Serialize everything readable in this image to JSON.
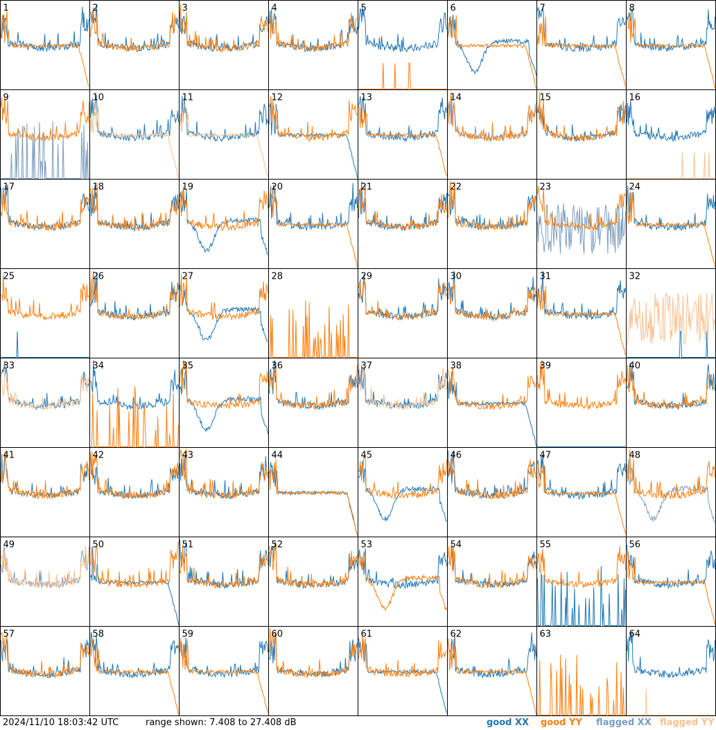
{
  "chart_data": {
    "type": "line",
    "grid": {
      "rows": 8,
      "cols": 8
    },
    "tiles": [
      {
        "label": "1",
        "xx": {
          "style": "hump",
          "flagged": false
        },
        "yy": {
          "style": "falloff",
          "flagged": false
        }
      },
      {
        "label": "2",
        "xx": {
          "style": "hump",
          "flagged": false
        },
        "yy": {
          "style": "hump",
          "flagged": false
        }
      },
      {
        "label": "3",
        "xx": {
          "style": "hump",
          "flagged": false
        },
        "yy": {
          "style": "hump",
          "flagged": false
        }
      },
      {
        "label": "4",
        "xx": {
          "style": "hump",
          "flagged": false
        },
        "yy": {
          "style": "hump",
          "flagged": false
        }
      },
      {
        "label": "5",
        "xx": {
          "style": "hump",
          "flagged": false
        },
        "yy": {
          "style": "dead",
          "flagged": false
        }
      },
      {
        "label": "6",
        "xx": {
          "style": "dip",
          "flagged": false
        },
        "yy": {
          "style": "falloff",
          "flagged": false
        }
      },
      {
        "label": "7",
        "xx": {
          "style": "hump",
          "flagged": false
        },
        "yy": {
          "style": "falloff",
          "flagged": false
        }
      },
      {
        "label": "8",
        "xx": {
          "style": "hump",
          "flagged": false
        },
        "yy": {
          "style": "falloff",
          "flagged": false
        }
      },
      {
        "label": "9",
        "xx": {
          "style": "spikes",
          "flagged": true
        },
        "yy": {
          "style": "hump",
          "flagged": false
        }
      },
      {
        "label": "10",
        "xx": {
          "style": "hump",
          "flagged": false
        },
        "yy": {
          "style": "falloff",
          "flagged": true
        }
      },
      {
        "label": "11",
        "xx": {
          "style": "hump",
          "flagged": false
        },
        "yy": {
          "style": "falloff",
          "flagged": true
        }
      },
      {
        "label": "12",
        "xx": {
          "style": "falloff",
          "flagged": false
        },
        "yy": {
          "style": "hump",
          "flagged": false
        }
      },
      {
        "label": "13",
        "xx": {
          "style": "hump",
          "flagged": false
        },
        "yy": {
          "style": "falloff",
          "flagged": false
        }
      },
      {
        "label": "14",
        "xx": {
          "style": "hump",
          "flagged": true
        },
        "yy": {
          "style": "hump",
          "flagged": false
        }
      },
      {
        "label": "15",
        "xx": {
          "style": "hump",
          "flagged": false
        },
        "yy": {
          "style": "hump",
          "flagged": false
        }
      },
      {
        "label": "16",
        "xx": {
          "style": "hump",
          "flagged": false
        },
        "yy": {
          "style": "dead",
          "flagged": true
        }
      },
      {
        "label": "17",
        "xx": {
          "style": "hump",
          "flagged": false
        },
        "yy": {
          "style": "hump",
          "flagged": false
        }
      },
      {
        "label": "18",
        "xx": {
          "style": "hump",
          "flagged": false
        },
        "yy": {
          "style": "hump",
          "flagged": false
        }
      },
      {
        "label": "19",
        "xx": {
          "style": "dip",
          "flagged": false
        },
        "yy": {
          "style": "hump",
          "flagged": false
        }
      },
      {
        "label": "20",
        "xx": {
          "style": "hump",
          "flagged": false
        },
        "yy": {
          "style": "falloff",
          "flagged": false
        }
      },
      {
        "label": "21",
        "xx": {
          "style": "hump",
          "flagged": false
        },
        "yy": {
          "style": "hump",
          "flagged": false
        }
      },
      {
        "label": "22",
        "xx": {
          "style": "hump",
          "flagged": false
        },
        "yy": {
          "style": "hump",
          "flagged": false
        }
      },
      {
        "label": "23",
        "xx": {
          "style": "noise",
          "flagged": true
        },
        "yy": {
          "style": "hump",
          "flagged": false
        }
      },
      {
        "label": "24",
        "xx": {
          "style": "hump",
          "flagged": false
        },
        "yy": {
          "style": "falloff",
          "flagged": false
        }
      },
      {
        "label": "25",
        "xx": {
          "style": "dead",
          "flagged": false
        },
        "yy": {
          "style": "hump",
          "flagged": false
        }
      },
      {
        "label": "26",
        "xx": {
          "style": "hump",
          "flagged": false
        },
        "yy": {
          "style": "hump",
          "flagged": false
        }
      },
      {
        "label": "27",
        "xx": {
          "style": "dip",
          "flagged": false
        },
        "yy": {
          "style": "hump",
          "flagged": false
        }
      },
      {
        "label": "28",
        "xx": {
          "style": "none",
          "flagged": false
        },
        "yy": {
          "style": "spikes",
          "flagged": false
        }
      },
      {
        "label": "29",
        "xx": {
          "style": "hump",
          "flagged": false
        },
        "yy": {
          "style": "hump",
          "flagged": false
        }
      },
      {
        "label": "30",
        "xx": {
          "style": "hump",
          "flagged": false
        },
        "yy": {
          "style": "hump",
          "flagged": false
        }
      },
      {
        "label": "31",
        "xx": {
          "style": "hump",
          "flagged": false
        },
        "yy": {
          "style": "falloff",
          "flagged": false
        }
      },
      {
        "label": "32",
        "xx": {
          "style": "dead",
          "flagged": false
        },
        "yy": {
          "style": "noise",
          "flagged": true
        }
      },
      {
        "label": "33",
        "xx": {
          "style": "hump",
          "flagged": false
        },
        "yy": {
          "style": "hump",
          "flagged": true
        }
      },
      {
        "label": "34",
        "xx": {
          "style": "hump",
          "flagged": false
        },
        "yy": {
          "style": "spikes",
          "flagged": false
        }
      },
      {
        "label": "35",
        "xx": {
          "style": "dip",
          "flagged": false
        },
        "yy": {
          "style": "hump",
          "flagged": false
        }
      },
      {
        "label": "36",
        "xx": {
          "style": "hump",
          "flagged": false
        },
        "yy": {
          "style": "hump",
          "flagged": false
        }
      },
      {
        "label": "37",
        "xx": {
          "style": "hump",
          "flagged": false
        },
        "yy": {
          "style": "hump",
          "flagged": true
        }
      },
      {
        "label": "38",
        "xx": {
          "style": "falloff",
          "flagged": false
        },
        "yy": {
          "style": "hump",
          "flagged": false
        }
      },
      {
        "label": "39",
        "xx": {
          "style": "dead",
          "flagged": false
        },
        "yy": {
          "style": "hump",
          "flagged": false
        }
      },
      {
        "label": "40",
        "xx": {
          "style": "hump",
          "flagged": false
        },
        "yy": {
          "style": "hump",
          "flagged": false
        }
      },
      {
        "label": "41",
        "xx": {
          "style": "hump",
          "flagged": false
        },
        "yy": {
          "style": "hump",
          "flagged": false
        }
      },
      {
        "label": "42",
        "xx": {
          "style": "hump",
          "flagged": false
        },
        "yy": {
          "style": "hump",
          "flagged": false
        }
      },
      {
        "label": "43",
        "xx": {
          "style": "hump",
          "flagged": false
        },
        "yy": {
          "style": "hump",
          "flagged": false
        }
      },
      {
        "label": "44",
        "xx": {
          "style": "falloff",
          "flagged": false
        },
        "yy": {
          "style": "falloff",
          "flagged": false
        }
      },
      {
        "label": "45",
        "xx": {
          "style": "dip",
          "flagged": false
        },
        "yy": {
          "style": "hump",
          "flagged": false
        }
      },
      {
        "label": "46",
        "xx": {
          "style": "hump",
          "flagged": false
        },
        "yy": {
          "style": "hump",
          "flagged": false
        }
      },
      {
        "label": "47",
        "xx": {
          "style": "hump",
          "flagged": false
        },
        "yy": {
          "style": "falloff",
          "flagged": false
        }
      },
      {
        "label": "48",
        "xx": {
          "style": "dip",
          "flagged": true
        },
        "yy": {
          "style": "hump",
          "flagged": false
        }
      },
      {
        "label": "49",
        "xx": {
          "style": "hump",
          "flagged": true
        },
        "yy": {
          "style": "hump",
          "flagged": true
        }
      },
      {
        "label": "50",
        "xx": {
          "style": "falloff",
          "flagged": false
        },
        "yy": {
          "style": "hump",
          "flagged": false
        }
      },
      {
        "label": "51",
        "xx": {
          "style": "hump",
          "flagged": false
        },
        "yy": {
          "style": "hump",
          "flagged": false
        }
      },
      {
        "label": "52",
        "xx": {
          "style": "hump",
          "flagged": false
        },
        "yy": {
          "style": "hump",
          "flagged": false
        }
      },
      {
        "label": "53",
        "xx": {
          "style": "hump",
          "flagged": false
        },
        "yy": {
          "style": "dip",
          "flagged": false
        }
      },
      {
        "label": "54",
        "xx": {
          "style": "hump",
          "flagged": false
        },
        "yy": {
          "style": "hump",
          "flagged": false
        }
      },
      {
        "label": "55",
        "xx": {
          "style": "spikes",
          "flagged": false
        },
        "yy": {
          "style": "hump",
          "flagged": false
        }
      },
      {
        "label": "56",
        "xx": {
          "style": "hump",
          "flagged": false
        },
        "yy": {
          "style": "falloff",
          "flagged": false
        }
      },
      {
        "label": "57",
        "xx": {
          "style": "hump",
          "flagged": false
        },
        "yy": {
          "style": "hump",
          "flagged": false
        }
      },
      {
        "label": "58",
        "xx": {
          "style": "hump",
          "flagged": false
        },
        "yy": {
          "style": "falloff",
          "flagged": false
        }
      },
      {
        "label": "59",
        "xx": {
          "style": "hump",
          "flagged": false
        },
        "yy": {
          "style": "falloff",
          "flagged": false
        }
      },
      {
        "label": "60",
        "xx": {
          "style": "hump",
          "flagged": false
        },
        "yy": {
          "style": "hump",
          "flagged": false
        }
      },
      {
        "label": "61",
        "xx": {
          "style": "falloff",
          "flagged": false
        },
        "yy": {
          "style": "hump",
          "flagged": false
        }
      },
      {
        "label": "62",
        "xx": {
          "style": "hump",
          "flagged": false
        },
        "yy": {
          "style": "falloff",
          "flagged": false
        }
      },
      {
        "label": "63",
        "xx": {
          "style": "none",
          "flagged": false
        },
        "yy": {
          "style": "spikes",
          "flagged": false
        }
      },
      {
        "label": "64",
        "xx": {
          "style": "hump",
          "flagged": false
        },
        "yy": {
          "style": "dead",
          "flagged": true
        }
      }
    ],
    "colors": {
      "good_xx": "#1f77b4",
      "good_yy": "#ff7f0e",
      "flagged_xx": "#7a9cbd",
      "flagged_yy": "#fbc08f"
    }
  },
  "footer": {
    "timestamp": "2024/11/10 18:03:42 UTC",
    "range": "range shown: 7.408 to 27.408 dB"
  },
  "legend": {
    "good_xx": "good XX",
    "good_yy": "good YY",
    "flagged_xx": "flagged XX",
    "flagged_yy": "flagged YY"
  }
}
